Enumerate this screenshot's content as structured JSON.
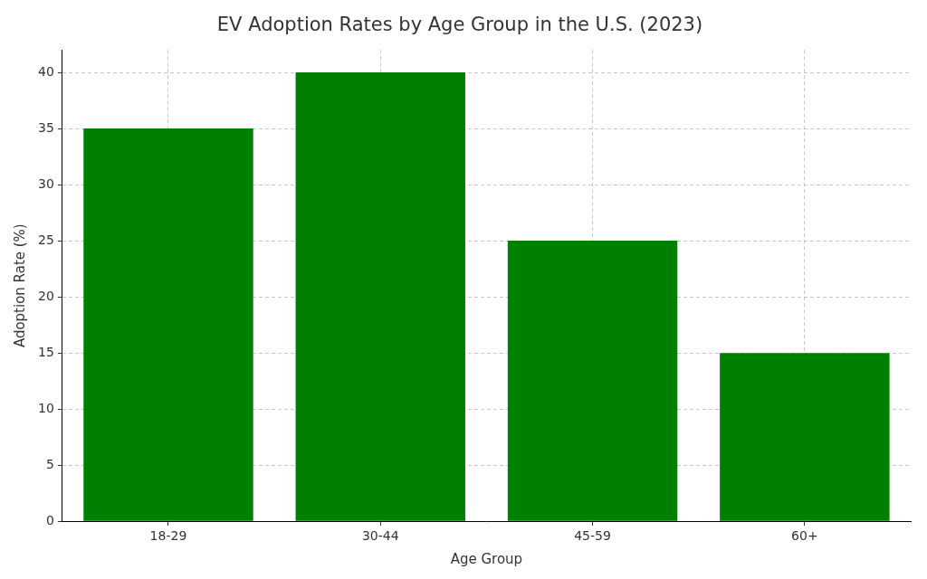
{
  "chart_data": {
    "type": "bar",
    "title": "EV Adoption Rates by Age Group in the U.S. (2023)",
    "x_label": "Age Group",
    "y_label": "Adoption Rate (%)",
    "categories": [
      "18-29",
      "30-44",
      "45-59",
      "60+"
    ],
    "values": [
      35,
      40,
      25,
      15
    ],
    "color": "#008000",
    "ylim": [
      0,
      42
    ],
    "yticks": [
      0,
      5,
      10,
      15,
      20,
      25,
      30,
      35,
      40
    ],
    "grid": true
  }
}
